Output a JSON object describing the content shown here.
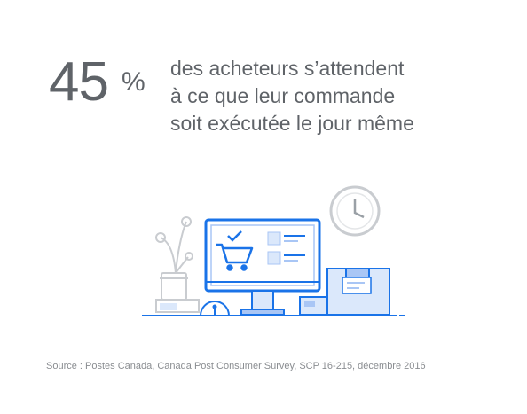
{
  "stat": {
    "value": "45",
    "unit": "%"
  },
  "headline": {
    "lines": [
      "des acheteurs s’attendent",
      "à ce que leur commande",
      "soit exécutée le jour même"
    ]
  },
  "source": "Source : Postes Canada, Canada Post Consumer Survey, SCP 16-215, décembre 2016",
  "illustration": {
    "icons": [
      "plant-icon",
      "monitor-icon",
      "shopping-cart-icon",
      "checkmark-icon",
      "clock-icon",
      "package-box-icon",
      "small-package-icon",
      "gauge-icon"
    ],
    "colors": {
      "stroke": "#1a73e8",
      "fill_light": "#dbe8fb",
      "fill_mid": "#a9c6f5",
      "gray": "#c9ccd0"
    }
  }
}
